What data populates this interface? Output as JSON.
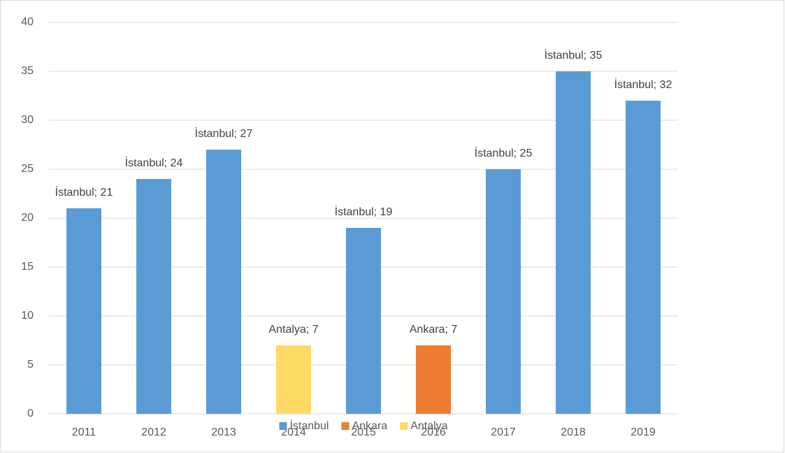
{
  "chart_data": {
    "type": "bar",
    "categories": [
      "2011",
      "2012",
      "2013",
      "2014",
      "2015",
      "2016",
      "2017",
      "2018",
      "2019"
    ],
    "series": [
      {
        "name": "İstanbul",
        "color": "#5b9bd5",
        "values": [
          21,
          24,
          27,
          null,
          19,
          null,
          25,
          35,
          32
        ],
        "value_labels": [
          "İstanbul; 21",
          "İstanbul; 24",
          "İstanbul; 27",
          null,
          "İstanbul; 19",
          null,
          "İstanbul; 25",
          "İstanbul; 35",
          "İstanbul; 32"
        ]
      },
      {
        "name": "Ankara",
        "color": "#ed7d31",
        "values": [
          null,
          null,
          null,
          null,
          null,
          7,
          null,
          null,
          null
        ],
        "value_labels": [
          null,
          null,
          null,
          null,
          null,
          "Ankara; 7",
          null,
          null,
          null
        ]
      },
      {
        "name": "Antalya",
        "color": "#ffd966",
        "values": [
          null,
          null,
          null,
          7,
          null,
          null,
          null,
          null,
          null
        ],
        "value_labels": [
          null,
          null,
          null,
          "Antalya; 7",
          null,
          null,
          null,
          null,
          null
        ]
      }
    ],
    "ylim": [
      0,
      40
    ],
    "yticks": [
      0,
      5,
      10,
      15,
      20,
      25,
      30,
      35,
      40
    ],
    "grid": true,
    "legend": "bottom"
  }
}
